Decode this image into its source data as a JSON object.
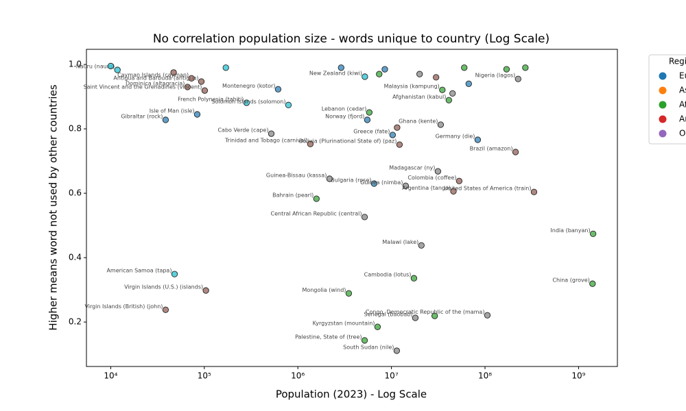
{
  "chart_data": {
    "type": "scatter",
    "title": "No correlation population size - words unique to country (Log Scale)",
    "x_label": "Population (2023) - Log Scale",
    "y_label": "Higher means word not used by other countries",
    "legend_title": "Region",
    "legend_position": "outside right",
    "x_scale": "log",
    "xlim": [
      5500,
      2600000000
    ],
    "xticks": [
      {
        "value": 10000,
        "label": "10⁴"
      },
      {
        "value": 100000,
        "label": "10⁵"
      },
      {
        "value": 1000000,
        "label": "10⁶"
      },
      {
        "value": 10000000,
        "label": "10⁷"
      },
      {
        "value": 100000000,
        "label": "10⁸"
      },
      {
        "value": 1000000000,
        "label": "10⁹"
      }
    ],
    "ylim": [
      0.062,
      1.047
    ],
    "yticks": [
      0.2,
      0.4,
      0.6,
      0.8,
      {
        "value": 1,
        "label": "1.0"
      }
    ],
    "series": [
      {
        "name": "Europe",
        "color": "#1f77b4",
        "point_color": "#1f77b4",
        "x": [
          38600,
          84000,
          83600000,
          5520000,
          10300000,
          6530000,
          615000,
          2900000,
          8500000,
          67000000
        ],
        "values": [
          0.828,
          0.845,
          0.766,
          0.828,
          0.781,
          0.63,
          0.923,
          0.99,
          0.985,
          0.94
        ],
        "labels": [
          "Gibraltar (rock)",
          "Isle of Man (isle)",
          "Germany (die)",
          "Norway (fjord)",
          "Greece (fate)",
          "Bulgaria (rose)",
          "Montenegro (kotor)",
          null,
          null,
          null
        ]
      },
      {
        "name": "Asia",
        "color": "#ff7f0e",
        "point_color": "#2ca02c",
        "x": [
          1430000000,
          1410000000,
          3500000,
          17400000,
          7110000,
          5170000,
          5800000,
          1580000,
          41100000,
          35000000,
          29000000,
          60000000,
          170000000,
          270000000,
          7400000
        ],
        "values": [
          0.474,
          0.319,
          0.289,
          0.336,
          0.185,
          0.143,
          0.851,
          0.583,
          0.889,
          0.921,
          0.219,
          0.99,
          0.985,
          0.99,
          0.97
        ],
        "labels": [
          "India (banyan)",
          "China (grove)",
          "Mongolia (wind)",
          "Cambodia (lotus)",
          "Kyrgyzstan (mountain)",
          "Palestine, State of (tree)",
          "Lebanon (cedar)",
          "Bahrain (pearl)",
          "Afghanistan (kabul)",
          "Malaysia (kampung)",
          null,
          null,
          null,
          null,
          null
        ]
      },
      {
        "name": "Africa",
        "color": "#2ca02c",
        "point_color": "#7f7f7f",
        "x": [
          31400000,
          14200000,
          2180000,
          5170000,
          20900000,
          106000000,
          18000000,
          11400000,
          520000,
          33600000,
          226000000,
          45000000,
          20000000
        ],
        "values": [
          0.668,
          0.623,
          0.645,
          0.526,
          0.438,
          0.221,
          0.213,
          0.111,
          0.785,
          0.813,
          0.955,
          0.91,
          0.97
        ],
        "labels": [
          "Madagascar (ny)",
          "Guinea (nimba)",
          "Guinea-Bissau (kassa)",
          "Central African Republic (central)",
          "Malawi (lake)",
          "Congo, Democratic Republic of the (mama)",
          "Senegal (baobab)",
          "South Sudan (nile)",
          "Cabo Verde (cape)",
          "Ghana (kente)",
          "Nigeria (lagos)",
          null,
          null
        ]
      },
      {
        "name": "Americas",
        "color": "#d62728",
        "point_color": "#8c564b",
        "x": [
          212000000,
          53000000,
          334000000,
          46000000,
          104000,
          38600,
          12200000,
          1360000,
          66200,
          101000,
          93000,
          73000,
          11500000,
          47000,
          30000000
        ],
        "values": [
          0.728,
          0.638,
          0.604,
          0.606,
          0.298,
          0.238,
          0.751,
          0.753,
          0.93,
          0.919,
          0.947,
          0.957,
          0.804,
          0.975,
          0.96
        ],
        "labels": [
          "Brazil (amazon)",
          "Colombia (coffee)",
          "United States of America (train)",
          "Argentina (tango)",
          "Virgin Islands (U.S.) (islands)",
          "Virgin Islands (British) (john)",
          "Bolivia (Plurinational State of) (paz)",
          "Trinidad and Tobago (carnival)",
          "Dominica (altagracia)",
          "Saint Vincent and the Grenadines (vincent)",
          "Antigua and Barbuda (antigua)",
          "Cayman Islands (cayman)",
          null,
          null,
          null
        ]
      },
      {
        "name": "Oceania",
        "color": "#9467bd",
        "point_color": "#17becf",
        "x": [
          48100,
          11800,
          283000,
          793000,
          5200000,
          10000,
          170000
        ],
        "values": [
          0.349,
          0.983,
          0.881,
          0.874,
          0.962,
          0.995,
          0.99
        ],
        "labels": [
          "American Samoa (tapa)",
          "Nauru (nauru)",
          "French Polynesia (tahiti)",
          "Solomon Islands (solomon)",
          "New Zealand (kiwi)",
          null,
          null
        ]
      }
    ]
  }
}
